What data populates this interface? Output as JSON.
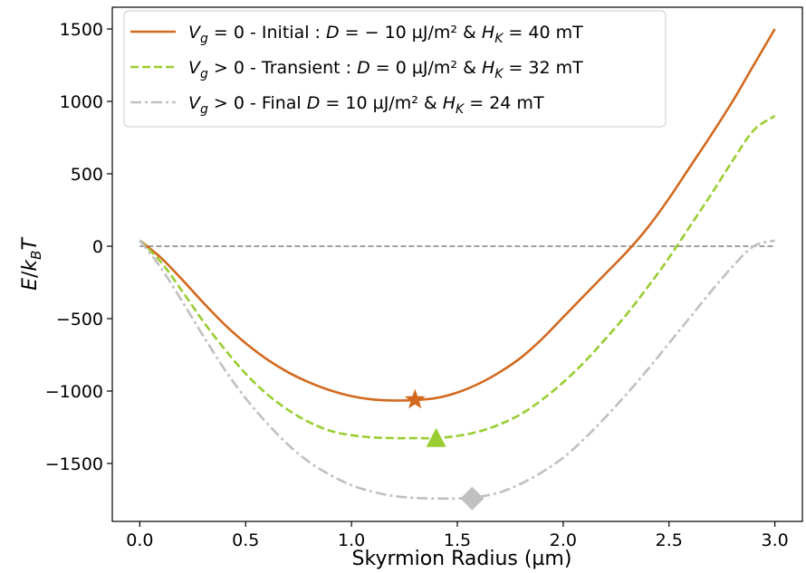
{
  "chart_data": {
    "type": "line",
    "xlabel": "Skyrmion Radius (µm)",
    "ylabel": "E/kBT",
    "xlim": [
      -0.13,
      3.13
    ],
    "ylim": [
      -1900,
      1650
    ],
    "xticks": [
      "0.0",
      "0.5",
      "1.0",
      "1.5",
      "2.0",
      "2.5",
      "3.0"
    ],
    "yticks": [
      "1500",
      "1000",
      "500",
      "0",
      "−500",
      "−1000",
      "−1500"
    ],
    "grid": false,
    "legend_position": "top-left",
    "reference_line": {
      "y": 0,
      "style": "dashed",
      "color": "#808080"
    },
    "series": [
      {
        "name": "Vg = 0 - Initial : D = − 10 µJ/m² & HK = 40 mT",
        "style": "solid",
        "color": "#d2691e",
        "x": [
          0.0,
          0.1,
          0.2,
          0.3,
          0.4,
          0.5,
          0.6,
          0.7,
          0.8,
          0.9,
          1.0,
          1.1,
          1.2,
          1.3,
          1.4,
          1.5,
          1.6,
          1.7,
          1.8,
          1.9,
          2.0,
          2.1,
          2.2,
          2.3,
          2.4,
          2.5,
          2.6,
          2.7,
          2.8,
          2.9,
          3.0
        ],
        "y": [
          40,
          -80,
          -230,
          -390,
          -540,
          -670,
          -780,
          -870,
          -940,
          -995,
          -1035,
          -1058,
          -1065,
          -1062,
          -1048,
          -1010,
          -950,
          -870,
          -770,
          -640,
          -490,
          -340,
          -190,
          -40,
          130,
          330,
          550,
          770,
          1000,
          1250,
          1500
        ],
        "marker": {
          "shape": "star",
          "x": 1.3,
          "y": -1060
        }
      },
      {
        "name": "Vg > 0 - Transient : D = 0 µJ/m² & HK = 32 mT",
        "style": "dashed",
        "color": "#9acd32",
        "x": [
          0.0,
          0.1,
          0.2,
          0.3,
          0.4,
          0.5,
          0.6,
          0.7,
          0.8,
          0.9,
          1.0,
          1.1,
          1.2,
          1.3,
          1.4,
          1.5,
          1.6,
          1.7,
          1.8,
          1.9,
          2.0,
          2.1,
          2.2,
          2.3,
          2.4,
          2.5,
          2.6,
          2.7,
          2.8,
          2.9,
          3.0
        ],
        "y": [
          40,
          -110,
          -310,
          -520,
          -710,
          -880,
          -1020,
          -1130,
          -1215,
          -1275,
          -1305,
          -1320,
          -1325,
          -1325,
          -1325,
          -1310,
          -1280,
          -1230,
          -1160,
          -1060,
          -940,
          -800,
          -640,
          -470,
          -280,
          -80,
          140,
          360,
          590,
          800,
          900
        ],
        "marker": {
          "shape": "triangle",
          "x": 1.4,
          "y": -1330
        }
      },
      {
        "name": "Vg > 0 - Final D = 10 µJ/m² & HK = 24 mT",
        "style": "dashdot",
        "color": "#c0c0c0",
        "x": [
          0.0,
          0.1,
          0.2,
          0.3,
          0.4,
          0.5,
          0.6,
          0.7,
          0.8,
          0.9,
          1.0,
          1.1,
          1.2,
          1.3,
          1.4,
          1.5,
          1.6,
          1.7,
          1.8,
          1.9,
          2.0,
          2.1,
          2.2,
          2.3,
          2.4,
          2.5,
          2.6,
          2.7,
          2.8,
          2.9,
          3.0
        ],
        "y": [
          40,
          -150,
          -380,
          -620,
          -850,
          -1050,
          -1220,
          -1370,
          -1490,
          -1580,
          -1650,
          -1695,
          -1725,
          -1738,
          -1742,
          -1742,
          -1730,
          -1700,
          -1640,
          -1560,
          -1460,
          -1330,
          -1180,
          -1020,
          -850,
          -670,
          -490,
          -310,
          -140,
          0,
          40
        ],
        "marker": {
          "shape": "diamond",
          "x": 1.57,
          "y": -1742
        }
      }
    ]
  },
  "legend": {
    "entries": [
      {
        "a": "V",
        "a_sub": "g",
        "b": " = 0 - Initial : ",
        "c": "D",
        "d": " = − 10 µJ/m² & ",
        "e": "H",
        "e_sub": "K",
        "f": " = 40 mT"
      },
      {
        "a": "V",
        "a_sub": "g",
        "b": " > 0 - Transient : ",
        "c": "D",
        "d": " = 0 µJ/m² & ",
        "e": "H",
        "e_sub": "K",
        "f": " = 32 mT"
      },
      {
        "a": "V",
        "a_sub": "g",
        "b": " > 0 - Final ",
        "c": "D",
        "d": " = 10 µJ/m² & ",
        "e": "H",
        "e_sub": "K",
        "f": " = 24 mT"
      }
    ]
  },
  "ylabel_parts": {
    "e": "E",
    "slash": "/",
    "k": "k",
    "sub": "B",
    "t": "T"
  }
}
